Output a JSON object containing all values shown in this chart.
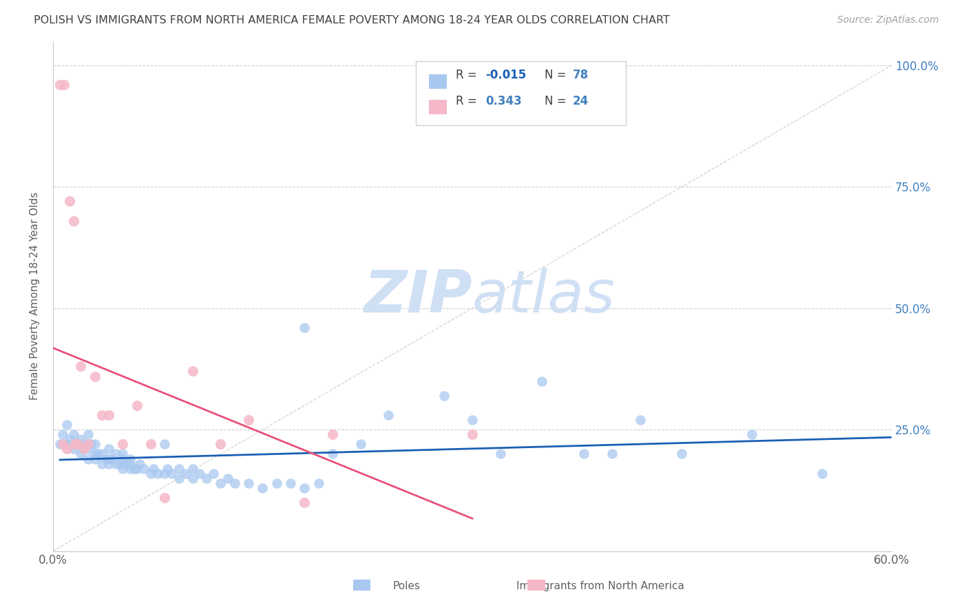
{
  "title": "POLISH VS IMMIGRANTS FROM NORTH AMERICA FEMALE POVERTY AMONG 18-24 YEAR OLDS CORRELATION CHART",
  "source": "Source: ZipAtlas.com",
  "ylabel": "Female Poverty Among 18-24 Year Olds",
  "xlim": [
    0.0,
    0.6
  ],
  "ylim": [
    0.0,
    1.05
  ],
  "blue_R": -0.015,
  "blue_N": 78,
  "pink_R": 0.343,
  "pink_N": 24,
  "blue_color": "#a8c8f0",
  "pink_color": "#f5b8c8",
  "blue_line_color": "#1a5fb4",
  "pink_line_color": "#e8507a",
  "diag_line_color": "#c8c8c8",
  "grid_color": "#d0d0d0",
  "title_color": "#404040",
  "right_label_color": "#4080c0",
  "watermark_color": "#d0e0f4",
  "legend_r_color": "#404040",
  "legend_val_blue": "#1a5fb4",
  "legend_val_pink": "#4080c0",
  "legend_n_color": "#4080c0",
  "blue_scatter_x": [
    0.005,
    0.007,
    0.01,
    0.01,
    0.012,
    0.015,
    0.015,
    0.018,
    0.02,
    0.02,
    0.022,
    0.025,
    0.025,
    0.025,
    0.027,
    0.03,
    0.03,
    0.03,
    0.032,
    0.035,
    0.035,
    0.038,
    0.04,
    0.04,
    0.04,
    0.042,
    0.045,
    0.045,
    0.048,
    0.05,
    0.05,
    0.05,
    0.052,
    0.055,
    0.055,
    0.055,
    0.058,
    0.06,
    0.062,
    0.065,
    0.07,
    0.072,
    0.075,
    0.08,
    0.082,
    0.085,
    0.09,
    0.09,
    0.095,
    0.1,
    0.1,
    0.105,
    0.11,
    0.115,
    0.12,
    0.125,
    0.13,
    0.14,
    0.15,
    0.16,
    0.17,
    0.18,
    0.19,
    0.2,
    0.22,
    0.24,
    0.28,
    0.3,
    0.32,
    0.35,
    0.38,
    0.4,
    0.42,
    0.45,
    0.5,
    0.55,
    0.18,
    0.08
  ],
  "blue_scatter_y": [
    0.22,
    0.24,
    0.22,
    0.26,
    0.23,
    0.21,
    0.24,
    0.22,
    0.2,
    0.23,
    0.22,
    0.19,
    0.21,
    0.24,
    0.22,
    0.19,
    0.2,
    0.22,
    0.2,
    0.18,
    0.2,
    0.19,
    0.18,
    0.19,
    0.21,
    0.19,
    0.18,
    0.2,
    0.18,
    0.17,
    0.19,
    0.2,
    0.18,
    0.17,
    0.18,
    0.19,
    0.17,
    0.17,
    0.18,
    0.17,
    0.16,
    0.17,
    0.16,
    0.16,
    0.17,
    0.16,
    0.15,
    0.17,
    0.16,
    0.15,
    0.17,
    0.16,
    0.15,
    0.16,
    0.14,
    0.15,
    0.14,
    0.14,
    0.13,
    0.14,
    0.14,
    0.13,
    0.14,
    0.2,
    0.22,
    0.28,
    0.32,
    0.27,
    0.2,
    0.35,
    0.2,
    0.2,
    0.27,
    0.2,
    0.24,
    0.16,
    0.46,
    0.22
  ],
  "pink_scatter_x": [
    0.005,
    0.007,
    0.008,
    0.01,
    0.012,
    0.015,
    0.016,
    0.018,
    0.02,
    0.022,
    0.025,
    0.03,
    0.035,
    0.04,
    0.05,
    0.06,
    0.07,
    0.08,
    0.1,
    0.12,
    0.14,
    0.18,
    0.2,
    0.3
  ],
  "pink_scatter_y": [
    0.96,
    0.22,
    0.96,
    0.21,
    0.72,
    0.68,
    0.22,
    0.22,
    0.38,
    0.21,
    0.22,
    0.36,
    0.28,
    0.28,
    0.22,
    0.3,
    0.22,
    0.11,
    0.37,
    0.22,
    0.27,
    0.1,
    0.24,
    0.24
  ],
  "pink_line_start_x": 0.0,
  "pink_line_end_x": 0.3,
  "blue_line_start_x": 0.005,
  "blue_line_end_x": 0.6
}
